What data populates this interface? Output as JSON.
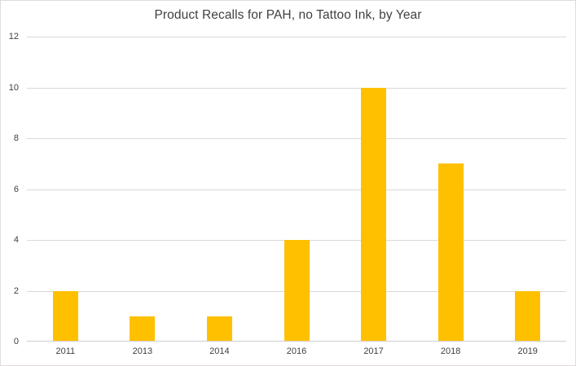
{
  "chart_data": {
    "type": "bar",
    "title": "Product Recalls for PAH, no Tattoo Ink, by Year",
    "categories": [
      "2011",
      "2013",
      "2014",
      "2016",
      "2017",
      "2018",
      "2019"
    ],
    "values": [
      2,
      1,
      1,
      4,
      10,
      7,
      2
    ],
    "xlabel": "",
    "ylabel": "",
    "ylim": [
      0,
      12
    ],
    "yticks": [
      0,
      2,
      4,
      6,
      8,
      10,
      12
    ],
    "grid": true,
    "legend_position": "none",
    "bar_color": "#FFC000",
    "gridline_color": "#D9D9D9",
    "axis_label_color": "#404040",
    "title_color": "#404040",
    "frame_border_color": "#E2DCDC",
    "background_color": "#FFFFFF"
  }
}
